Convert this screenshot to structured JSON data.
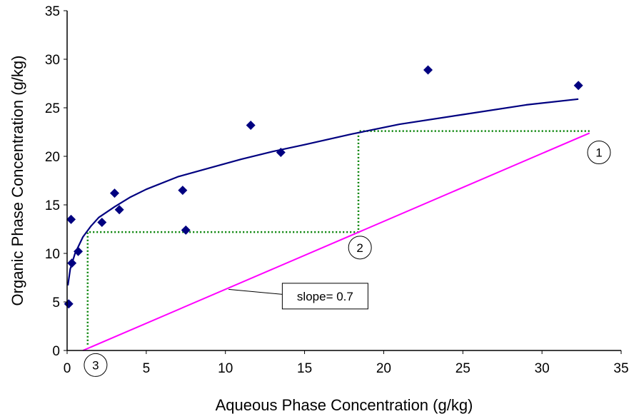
{
  "chart_data": {
    "type": "scatter",
    "title": "",
    "xlabel": "Aqueous Phase Concentration (g/kg)",
    "ylabel": "Organic Phase Concentration (g/kg)",
    "xlim": [
      0,
      35
    ],
    "ylim": [
      0,
      35
    ],
    "xticks": [
      0,
      5,
      10,
      15,
      20,
      25,
      30,
      35
    ],
    "yticks": [
      0,
      5,
      10,
      15,
      20,
      25,
      30,
      35
    ],
    "grid": false,
    "legend": "none",
    "series": [
      {
        "kind": "points",
        "marker": "diamond",
        "color": "#000080",
        "points": [
          [
            0.1,
            4.8
          ],
          [
            0.25,
            13.5
          ],
          [
            0.3,
            9.0
          ],
          [
            0.7,
            10.2
          ],
          [
            2.2,
            13.2
          ],
          [
            3.0,
            16.2
          ],
          [
            3.3,
            14.5
          ],
          [
            7.3,
            16.5
          ],
          [
            7.5,
            12.4
          ],
          [
            11.6,
            23.2
          ],
          [
            13.5,
            20.4
          ],
          [
            22.8,
            28.9
          ],
          [
            32.3,
            27.3
          ]
        ]
      },
      {
        "kind": "curve",
        "color": "#000080",
        "points": [
          [
            0.05,
            6.7
          ],
          [
            0.2,
            8.4
          ],
          [
            0.5,
            10.0
          ],
          [
            1.0,
            11.7
          ],
          [
            1.5,
            12.8
          ],
          [
            2.0,
            13.7
          ],
          [
            3.0,
            14.8
          ],
          [
            4.0,
            15.8
          ],
          [
            5.0,
            16.6
          ],
          [
            7.0,
            17.9
          ],
          [
            9.0,
            18.8
          ],
          [
            11.0,
            19.7
          ],
          [
            13.0,
            20.5
          ],
          [
            15.0,
            21.2
          ],
          [
            18.0,
            22.3
          ],
          [
            21.0,
            23.3
          ],
          [
            25.0,
            24.3
          ],
          [
            29.0,
            25.3
          ],
          [
            32.3,
            25.9
          ]
        ]
      },
      {
        "kind": "operating-line",
        "color": "#FF00FF",
        "points": [
          [
            1.0,
            0.0
          ],
          [
            33.0,
            22.4
          ]
        ]
      },
      {
        "kind": "stage-steps",
        "color": "#008000",
        "points": [
          [
            33.0,
            22.6
          ],
          [
            18.4,
            22.6
          ],
          [
            18.4,
            12.2
          ],
          [
            1.3,
            12.2
          ],
          [
            1.3,
            0.6
          ]
        ]
      }
    ],
    "annotations": [
      {
        "label": "slope= 0.7",
        "kind": "box",
        "pointer": [
          10.2,
          6.3
        ],
        "anchor": [
          14.8,
          5.6
        ],
        "at": [
          16.3,
          5.6
        ]
      },
      {
        "label": "1",
        "kind": "circle",
        "at": [
          33.6,
          20.4
        ]
      },
      {
        "label": "2",
        "kind": "circle",
        "at": [
          18.5,
          10.6
        ]
      },
      {
        "label": "3",
        "kind": "circle",
        "at": [
          1.8,
          -1.5
        ]
      }
    ]
  }
}
